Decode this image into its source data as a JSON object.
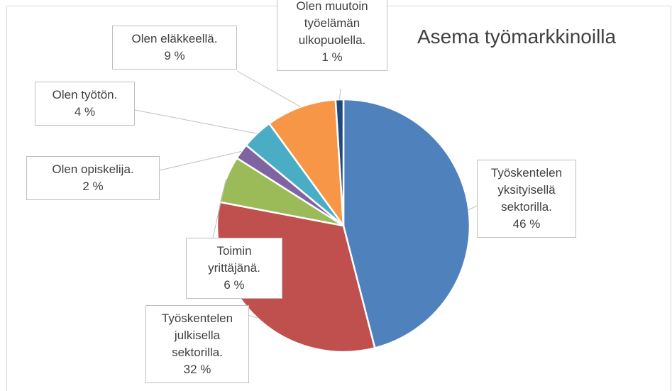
{
  "chart_data": {
    "type": "pie",
    "title": "Asema työmarkkinoilla",
    "categories": [
      "Työskentelen yksityisellä sektorilla.",
      "Työskentelen julkisella sektorilla.",
      "Toimin yrittäjänä.",
      "Olen opiskelija.",
      "Olen työtön.",
      "Olen eläkkeellä.",
      "Olen muutoin työelämän ulkopuolella."
    ],
    "values": [
      46,
      32,
      6,
      2,
      4,
      9,
      1
    ],
    "value_labels": [
      "46 %",
      "32 %",
      "6 %",
      "2 %",
      "4 %",
      "9 %",
      "1 %"
    ],
    "colors": [
      "#4f81bd",
      "#c0504d",
      "#9bbb59",
      "#8064a2",
      "#4bacc6",
      "#f79646",
      "#1f497d"
    ]
  }
}
